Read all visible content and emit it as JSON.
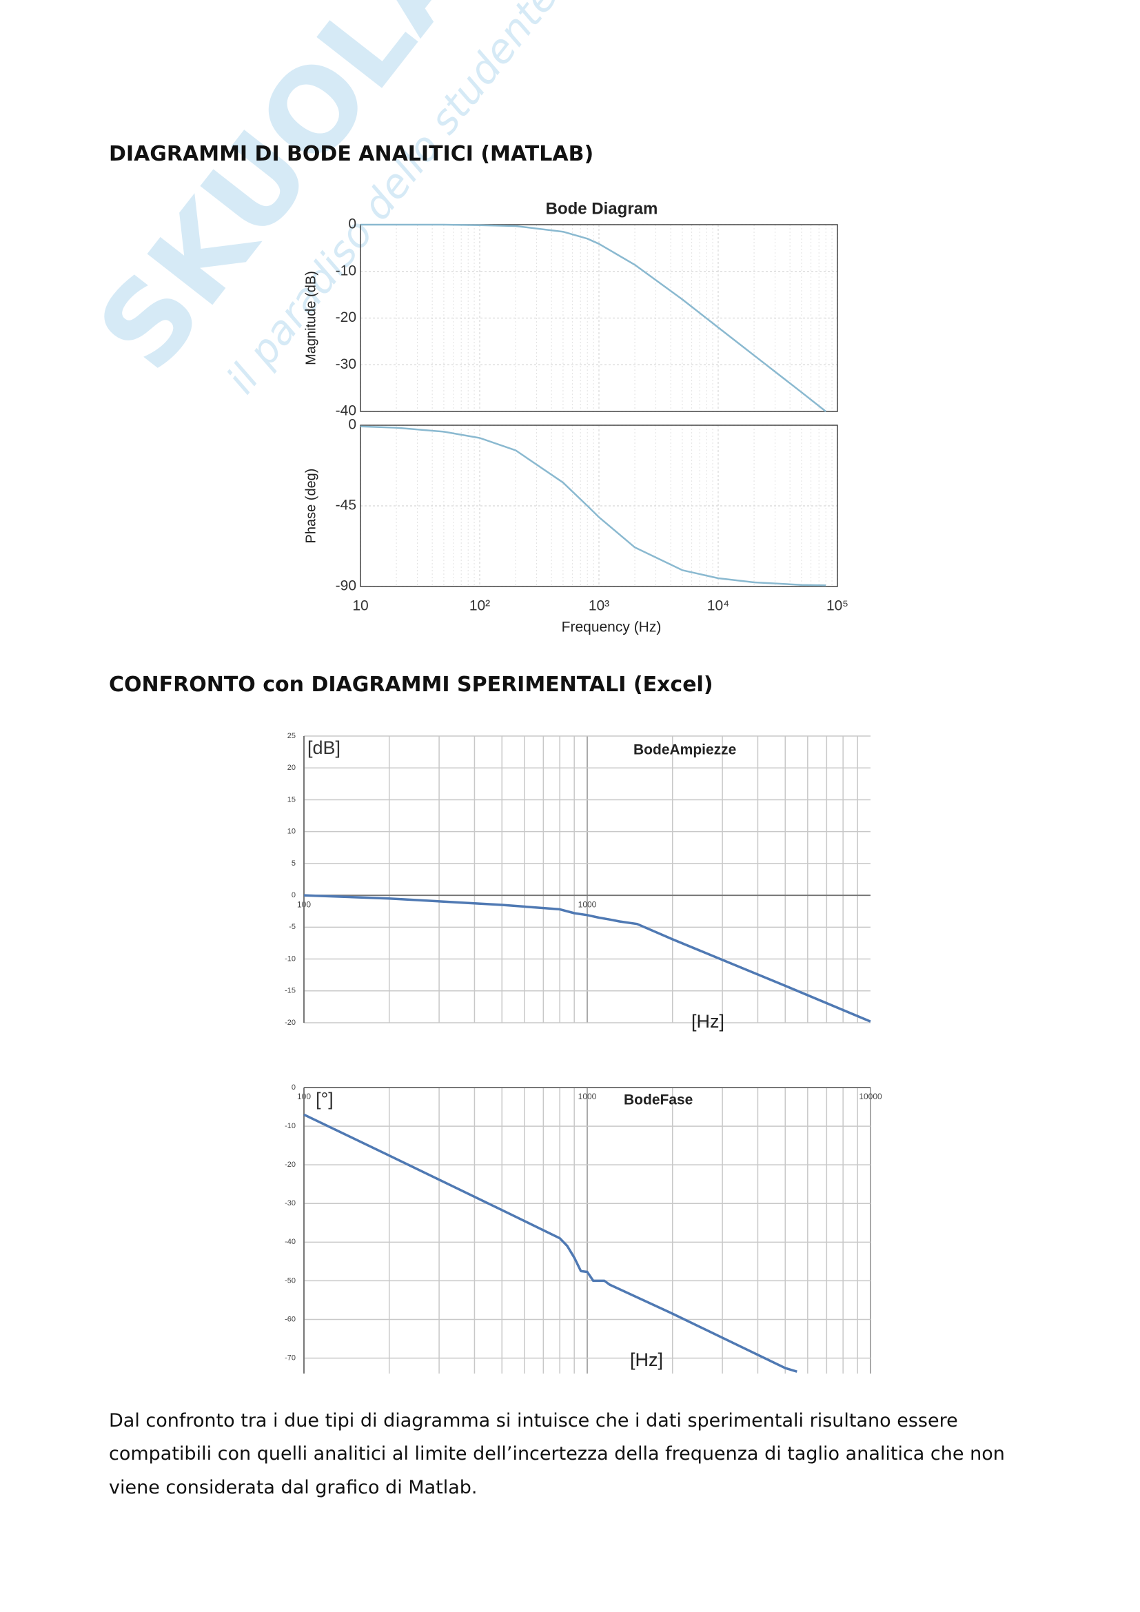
{
  "watermark": {
    "brand": "SKUOLA.net",
    "motto": "il paradiso dello studente"
  },
  "headings": [
    "DIAGRAMMI DI BODE ANALITICI (MATLAB)",
    "CONFRONTO con  DIAGRAMMI SPERIMENTALI (Excel)"
  ],
  "paragraph": [
    "Dal confronto tra i due tipi di diagramma si intuisce che i dati sperimentali risultano essere",
    "compatibili con quelli analitici al limite dell’incertezza della frequenza di taglio analitica che non",
    "viene considerata dal grafico di Matlab."
  ],
  "chart_data": [
    {
      "type": "line",
      "title": "Bode Diagram",
      "ylabel": "Magnitude (dB)",
      "log_x": true,
      "grid": true,
      "x": [
        10,
        20,
        50,
        100,
        200,
        500,
        800,
        1000,
        2000,
        5000,
        10000,
        20000,
        50000,
        80000
      ],
      "series": [
        {
          "color": "#8ab9d0",
          "values": [
            0,
            0,
            0,
            -0.1,
            -0.3,
            -1.5,
            -3.0,
            -4.1,
            -8.6,
            -16.0,
            -22.0,
            -28.0,
            -35.9,
            -40.0
          ]
        }
      ],
      "xlim": [
        10,
        100000
      ],
      "ylim": [
        -40,
        0
      ],
      "yticks": [
        0,
        -10,
        -20,
        -30,
        -40
      ]
    },
    {
      "type": "line",
      "ylabel": "Phase (deg)",
      "xlabel": "Frequency  (Hz)",
      "log_x": true,
      "grid": true,
      "x": [
        10,
        20,
        50,
        100,
        200,
        500,
        800,
        1000,
        2000,
        5000,
        10000,
        20000,
        50000,
        80000
      ],
      "series": [
        {
          "color": "#8ab9d0",
          "values": [
            -0.7,
            -1.4,
            -3.6,
            -7.1,
            -14.0,
            -32.0,
            -45.0,
            -51.3,
            -68.2,
            -80.9,
            -85.4,
            -87.7,
            -89.1,
            -89.4
          ]
        }
      ],
      "xlim": [
        10,
        100000
      ],
      "ylim": [
        -90,
        0
      ],
      "yticks": [
        0,
        -45,
        -90
      ],
      "xticks": [
        10,
        {
          "value": 100,
          "label": "10²"
        },
        {
          "value": 1000,
          "label": "10³"
        },
        {
          "value": 10000,
          "label": "10⁴"
        },
        {
          "value": 100000,
          "label": "10⁵"
        }
      ]
    },
    {
      "type": "line",
      "title": "BodeAmpiezze",
      "ylabel": "[dB]",
      "xlabel": "[Hz]",
      "log_x": true,
      "grid": true,
      "x": [
        100,
        200,
        500,
        800,
        900,
        1000,
        1100,
        1200,
        1300,
        1500,
        2000,
        5000,
        10000
      ],
      "series": [
        {
          "color": "#4f79b3",
          "values": [
            0,
            -0.5,
            -1.5,
            -2.2,
            -2.8,
            -3.1,
            -3.5,
            -3.8,
            -4.1,
            -4.5,
            -6.9,
            -14.2,
            -19.8
          ]
        }
      ],
      "xlim": [
        100,
        10000
      ],
      "xticks": [
        100,
        1000
      ],
      "ylim": [
        -20,
        25
      ],
      "yticks": [
        25,
        20,
        15,
        10,
        5,
        0,
        -5,
        -10,
        -15,
        -20
      ]
    },
    {
      "type": "line",
      "title": "BodeFase",
      "ylabel": "[°]",
      "xlabel": "[Hz]",
      "log_x": true,
      "grid": true,
      "x": [
        100,
        200,
        500,
        800,
        850,
        900,
        950,
        1000,
        1050,
        1150,
        1200,
        2000,
        5000,
        5500
      ],
      "series": [
        {
          "color": "#4f79b3",
          "values": [
            -7,
            -17.6,
            -31.7,
            -39,
            -41,
            -44,
            -47.5,
            -47.7,
            -50,
            -50,
            -51,
            -58.5,
            -72.6,
            -73.5
          ]
        }
      ],
      "xlim": [
        100,
        10000
      ],
      "xticks": [
        100,
        1000,
        10000
      ],
      "ylim": [
        -74,
        0
      ],
      "yticks": [
        0,
        -10,
        -20,
        -30,
        -40,
        -50,
        -60,
        -70
      ]
    }
  ]
}
